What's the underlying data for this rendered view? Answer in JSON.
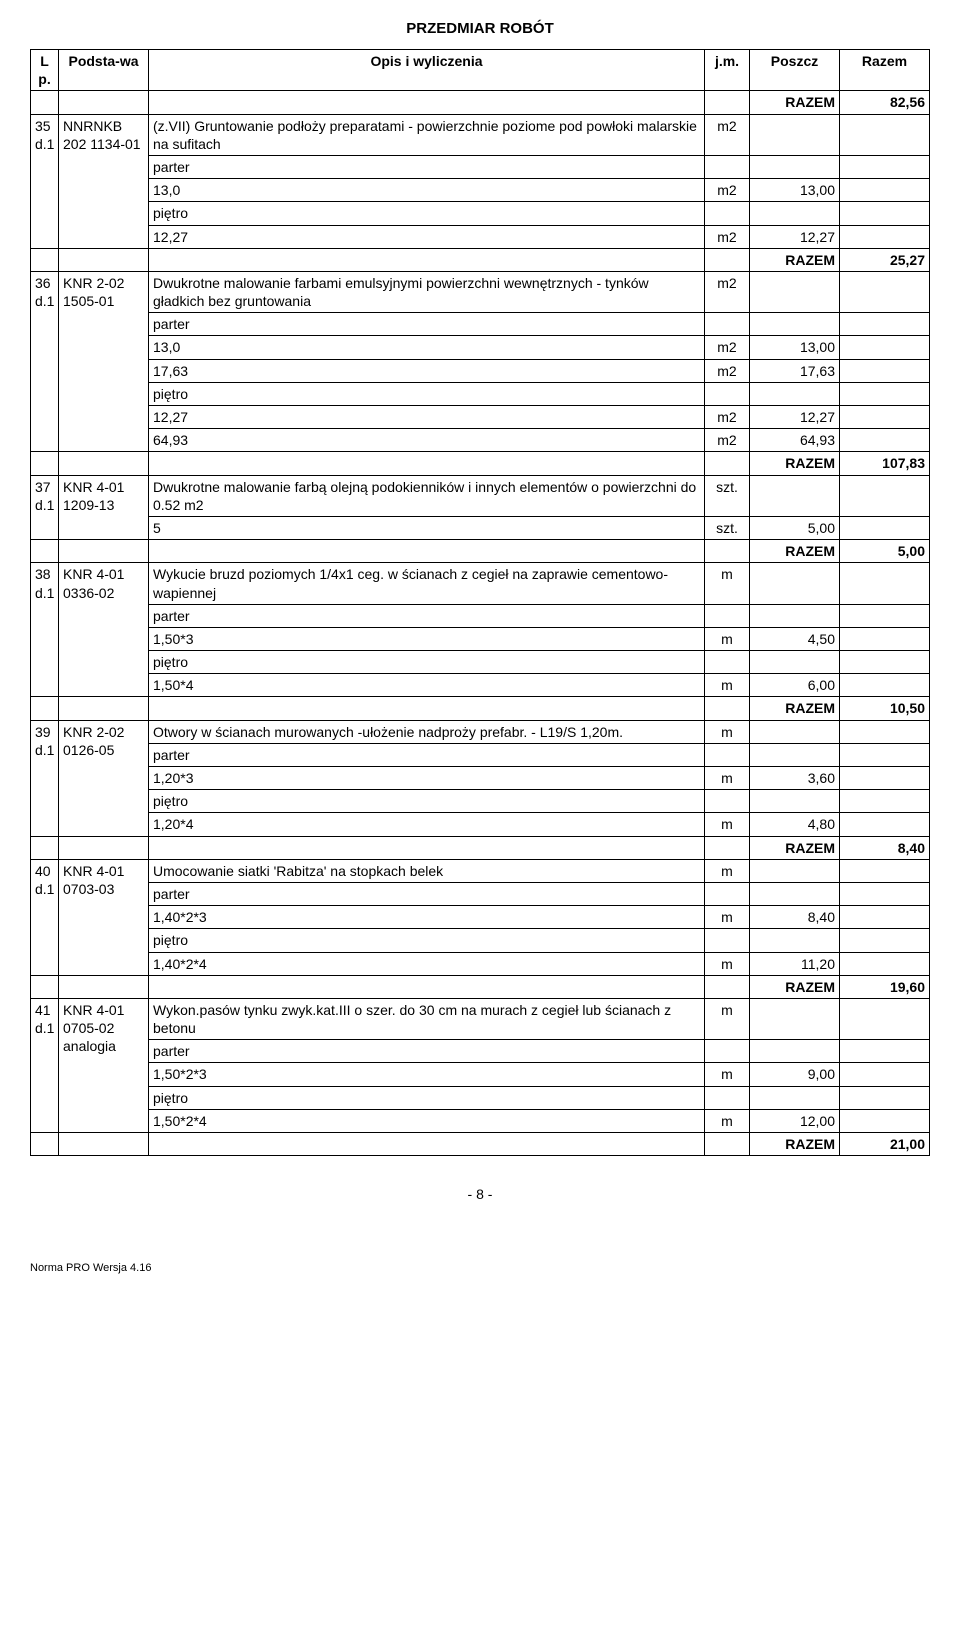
{
  "doc_title": "PRZEDMIAR ROBÓT",
  "headers": {
    "lp": "L p.",
    "base": "Podsta-wa",
    "desc": "Opis i wyliczenia",
    "jm": "j.m.",
    "poszcz": "Poszcz",
    "razem": "Razem"
  },
  "razem_label": "RAZEM",
  "page_number": "- 8 -",
  "footer": "Norma PRO Wersja 4.16",
  "rows": [
    {
      "type": "razem",
      "value": "82,56"
    },
    {
      "type": "item",
      "lp": "35 d.1",
      "base": "NNRNKB 202 1134-01",
      "desc": "(z.VII) Gruntowanie podłoży preparatami - powierzchnie poziome pod powłoki malarskie na sufitach",
      "jm": "m2"
    },
    {
      "type": "sub",
      "desc": "parter"
    },
    {
      "type": "calc",
      "desc": "13,0",
      "jm": "m2",
      "poszcz": "13,00"
    },
    {
      "type": "sub",
      "desc": "piętro"
    },
    {
      "type": "calc",
      "desc": "12,27",
      "jm": "m2",
      "poszcz": "12,27"
    },
    {
      "type": "razem",
      "value": "25,27"
    },
    {
      "type": "item",
      "lp": "36 d.1",
      "base": "KNR 2-02 1505-01",
      "desc": "Dwukrotne malowanie farbami emulsyjnymi powierzchni wewnętrznych - tynków gładkich bez gruntowania",
      "jm": "m2"
    },
    {
      "type": "sub",
      "desc": "parter"
    },
    {
      "type": "calc",
      "desc": "13,0",
      "jm": "m2",
      "poszcz": "13,00"
    },
    {
      "type": "calc",
      "desc": "17,63",
      "jm": "m2",
      "poszcz": "17,63"
    },
    {
      "type": "sub",
      "desc": "piętro"
    },
    {
      "type": "calc",
      "desc": "12,27",
      "jm": "m2",
      "poszcz": "12,27"
    },
    {
      "type": "calc",
      "desc": "64,93",
      "jm": "m2",
      "poszcz": "64,93"
    },
    {
      "type": "razem",
      "value": "107,83"
    },
    {
      "type": "item",
      "lp": "37 d.1",
      "base": "KNR 4-01 1209-13",
      "desc": "Dwukrotne malowanie farbą olejną podokienników i innych elementów o powierzchni do 0.52 m2",
      "jm": "szt."
    },
    {
      "type": "calc",
      "desc": "5",
      "jm": "szt.",
      "poszcz": "5,00"
    },
    {
      "type": "razem",
      "value": "5,00"
    },
    {
      "type": "item",
      "lp": "38 d.1",
      "base": "KNR 4-01 0336-02",
      "desc": "Wykucie bruzd poziomych 1/4x1 ceg. w ścianach z cegieł na zaprawie cementowo-wapiennej",
      "jm": "m"
    },
    {
      "type": "sub",
      "desc": "parter"
    },
    {
      "type": "calc",
      "desc": "1,50*3",
      "jm": "m",
      "poszcz": "4,50"
    },
    {
      "type": "sub",
      "desc": "piętro"
    },
    {
      "type": "calc",
      "desc": "1,50*4",
      "jm": "m",
      "poszcz": "6,00"
    },
    {
      "type": "razem",
      "value": "10,50"
    },
    {
      "type": "item",
      "lp": "39 d.1",
      "base": "KNR 2-02 0126-05",
      "desc": "Otwory w ścianach murowanych -ułożenie nadproży prefabr. - L19/S 1,20m.",
      "jm": "m"
    },
    {
      "type": "sub",
      "desc": "parter"
    },
    {
      "type": "calc",
      "desc": "1,20*3",
      "jm": "m",
      "poszcz": "3,60"
    },
    {
      "type": "sub",
      "desc": "piętro"
    },
    {
      "type": "calc",
      "desc": "1,20*4",
      "jm": "m",
      "poszcz": "4,80"
    },
    {
      "type": "razem",
      "value": "8,40"
    },
    {
      "type": "item",
      "lp": "40 d.1",
      "base": "KNR 4-01 0703-03",
      "desc": "Umocowanie siatki 'Rabitza' na stopkach belek",
      "jm": "m"
    },
    {
      "type": "sub",
      "desc": "parter"
    },
    {
      "type": "calc",
      "desc": "1,40*2*3",
      "jm": "m",
      "poszcz": "8,40"
    },
    {
      "type": "sub",
      "desc": "piętro"
    },
    {
      "type": "calc",
      "desc": "1,40*2*4",
      "jm": "m",
      "poszcz": "11,20"
    },
    {
      "type": "razem",
      "value": "19,60"
    },
    {
      "type": "item",
      "lp": "41 d.1",
      "base": "KNR 4-01 0705-02 analogia",
      "desc": "Wykon.pasów tynku zwyk.kat.III o szer. do 30 cm na murach z cegieł lub ścianach z betonu",
      "jm": "m"
    },
    {
      "type": "sub",
      "desc": "parter"
    },
    {
      "type": "calc",
      "desc": "1,50*2*3",
      "jm": "m",
      "poszcz": "9,00"
    },
    {
      "type": "sub",
      "desc": "piętro"
    },
    {
      "type": "calc",
      "desc": "1,50*2*4",
      "jm": "m",
      "poszcz": "12,00"
    },
    {
      "type": "razem",
      "value": "21,00"
    }
  ]
}
